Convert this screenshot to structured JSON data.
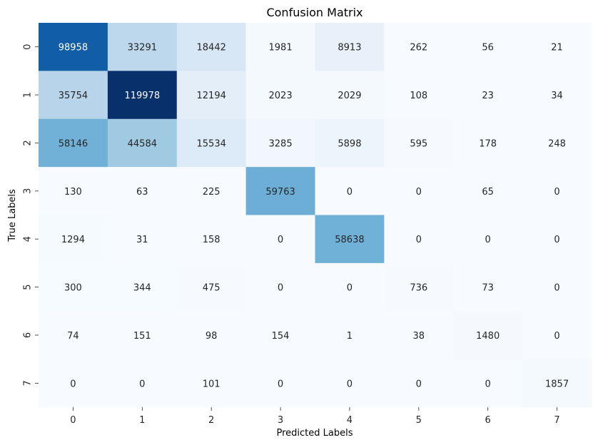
{
  "chart_data": {
    "type": "heatmap",
    "title": "Confusion Matrix",
    "xlabel": "Predicted Labels",
    "ylabel": "True Labels",
    "x_categories": [
      "0",
      "1",
      "2",
      "3",
      "4",
      "5",
      "6",
      "7"
    ],
    "y_categories": [
      "0",
      "1",
      "2",
      "3",
      "4",
      "5",
      "6",
      "7"
    ],
    "matrix": [
      [
        98958,
        33291,
        18442,
        1981,
        8913,
        262,
        56,
        21
      ],
      [
        35754,
        119978,
        12194,
        2023,
        2029,
        108,
        23,
        34
      ],
      [
        58146,
        44584,
        15534,
        3285,
        5898,
        595,
        178,
        248
      ],
      [
        130,
        63,
        225,
        59763,
        0,
        0,
        65,
        0
      ],
      [
        1294,
        31,
        158,
        0,
        58638,
        0,
        0,
        0
      ],
      [
        300,
        344,
        475,
        0,
        0,
        736,
        73,
        0
      ],
      [
        74,
        151,
        98,
        154,
        1,
        38,
        1480,
        0
      ],
      [
        0,
        0,
        101,
        0,
        0,
        0,
        0,
        1857
      ]
    ],
    "colormap": "Blues",
    "colorbar": false,
    "annotations": true,
    "grid": false
  }
}
